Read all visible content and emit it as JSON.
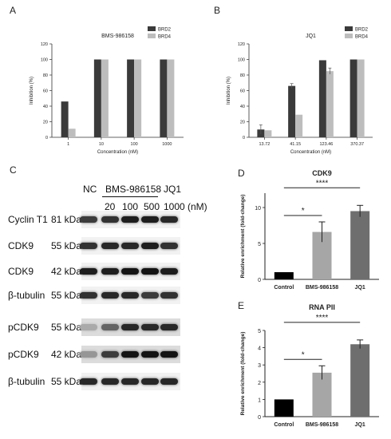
{
  "panels": {
    "A": "A",
    "B": "B",
    "C": "C",
    "D": "D",
    "E": "E"
  },
  "colors": {
    "brd2": "#3a3a3a",
    "brd4": "#bdbdbd",
    "control": "#000000",
    "bms": "#a6a6a6",
    "jq1": "#6e6e6e"
  },
  "chart_data": [
    {
      "id": "A",
      "type": "bar",
      "title": "BMS-986158",
      "xlabel": "Concentration (nM)",
      "ylabel": "Inhibition (%)",
      "categories": [
        "1",
        "10",
        "100",
        "1000"
      ],
      "ylim": [
        0,
        120
      ],
      "yticks": [
        0,
        20,
        40,
        60,
        80,
        100,
        120
      ],
      "legend_position": "top-right",
      "series": [
        {
          "name": "BRD2",
          "values": [
            46,
            100,
            100,
            100
          ],
          "errors": [
            0,
            0,
            0,
            0
          ]
        },
        {
          "name": "BRD4",
          "values": [
            11,
            100,
            100,
            100
          ],
          "errors": [
            0,
            0,
            0,
            0
          ]
        }
      ]
    },
    {
      "id": "B",
      "type": "bar",
      "title": "JQ1",
      "xlabel": "Concentration (nM)",
      "ylabel": "Inhibition (%)",
      "categories": [
        "13.72",
        "41.15",
        "123.46",
        "370.37"
      ],
      "ylim": [
        0,
        120
      ],
      "yticks": [
        0,
        20,
        40,
        60,
        80,
        100,
        120
      ],
      "legend_position": "top-right",
      "series": [
        {
          "name": "BRD2",
          "values": [
            10,
            66,
            99,
            100
          ],
          "errors": [
            6,
            3,
            0,
            0
          ]
        },
        {
          "name": "BRD4",
          "values": [
            9,
            29,
            85,
            100
          ],
          "errors": [
            0,
            0,
            4,
            0
          ]
        }
      ]
    },
    {
      "id": "D",
      "type": "bar",
      "title": "CDK9",
      "xlabel": "",
      "ylabel": "Relative enrichment (fold-change)",
      "categories": [
        "Control",
        "BMS-986158",
        "JQ1"
      ],
      "ylim": [
        0,
        12
      ],
      "yticks": [
        0,
        5,
        10
      ],
      "series": [
        {
          "values": [
            1,
            6.6,
            9.5
          ],
          "errors": [
            0,
            1.4,
            0.8
          ]
        }
      ],
      "significance": [
        {
          "from": "Control",
          "to": "BMS-986158",
          "label": "*"
        },
        {
          "from": "Control",
          "to": "JQ1",
          "label": "****"
        }
      ]
    },
    {
      "id": "E",
      "type": "bar",
      "title": "RNA PII",
      "xlabel": "",
      "ylabel": "Relative enrichment (fold-change)",
      "categories": [
        "Control",
        "BMS-986158",
        "JQ1"
      ],
      "ylim": [
        0,
        5
      ],
      "yticks": [
        0,
        1,
        2,
        3,
        4,
        5
      ],
      "series": [
        {
          "values": [
            1,
            2.55,
            4.2
          ],
          "errors": [
            0,
            0.4,
            0.25
          ]
        }
      ],
      "significance": [
        {
          "from": "Control",
          "to": "BMS-986158",
          "label": "*"
        },
        {
          "from": "Control",
          "to": "JQ1",
          "label": "****"
        }
      ]
    }
  ],
  "blot": {
    "groups": {
      "nc": "NC",
      "bms": "BMS-986158",
      "jq1": "JQ1"
    },
    "concentrations": [
      "20",
      "100",
      "500",
      "1000"
    ],
    "unit": "(nM)",
    "rows": [
      {
        "protein": "Cyclin T1",
        "kda": "81 kDa"
      },
      {
        "protein": "CDK9",
        "kda": "55 kDa"
      },
      {
        "protein": "CDK9",
        "kda": "42 kDa"
      },
      {
        "protein": "β-tubulin",
        "kda": "55 kDa"
      },
      {
        "protein": "pCDK9",
        "kda": "55 kDa"
      },
      {
        "protein": "pCDK9",
        "kda": "42 kDa"
      },
      {
        "protein": "β-tubulin",
        "kda": "55 kDa"
      }
    ],
    "intensities": [
      [
        0.75,
        0.8,
        0.9,
        0.9,
        0.85
      ],
      [
        0.8,
        0.85,
        0.85,
        0.9,
        0.8
      ],
      [
        0.9,
        0.9,
        0.95,
        0.95,
        0.9
      ],
      [
        0.8,
        0.85,
        0.85,
        0.75,
        0.8
      ],
      [
        0.2,
        0.55,
        0.85,
        0.85,
        0.85
      ],
      [
        0.3,
        0.75,
        0.95,
        0.95,
        0.95
      ],
      [
        0.85,
        0.85,
        0.85,
        0.85,
        0.85
      ]
    ]
  }
}
